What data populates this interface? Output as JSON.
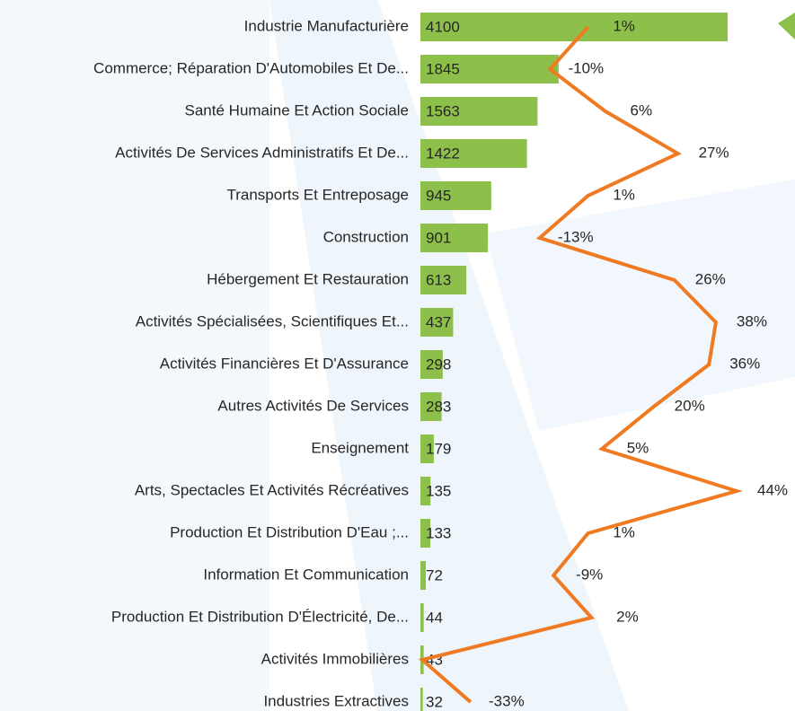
{
  "chart_data": {
    "type": "bar",
    "orientation": "horizontal",
    "categories": [
      "Industrie Manufacturière",
      "Commerce; Réparation D'Automobiles Et De...",
      "Santé Humaine Et Action Sociale",
      "Activités De Services Administratifs Et De...",
      "Transports Et Entreposage",
      "Construction",
      "Hébergement Et Restauration",
      "Activités Spécialisées, Scientifiques Et...",
      "Activités Financières Et D'Assurance",
      "Autres Activités De Services",
      "Enseignement",
      "Arts, Spectacles Et Activités Récréatives",
      "Production Et Distribution D'Eau ;...",
      "Information Et Communication",
      "Production Et Distribution D'Électricité, De...",
      "Activités Immobilières",
      "Industries Extractives"
    ],
    "series": [
      {
        "type": "bar",
        "color": "#8dc04a",
        "values": [
          4100,
          1845,
          1563,
          1422,
          945,
          901,
          613,
          437,
          298,
          283,
          179,
          135,
          133,
          72,
          44,
          43,
          32
        ]
      },
      {
        "type": "line",
        "color": "#f07a22",
        "values": [
          1,
          -10,
          6,
          27,
          1,
          -13,
          26,
          38,
          36,
          20,
          5,
          44,
          1,
          -9,
          2,
          -47,
          -33
        ],
        "value_labels": [
          "1%",
          "-10%",
          "6%",
          "27%",
          "1%",
          "-13%",
          "26%",
          "38%",
          "36%",
          "20%",
          "5%",
          "44%",
          "1%",
          "-9%",
          "2%",
          null,
          "-33%"
        ]
      }
    ]
  }
}
